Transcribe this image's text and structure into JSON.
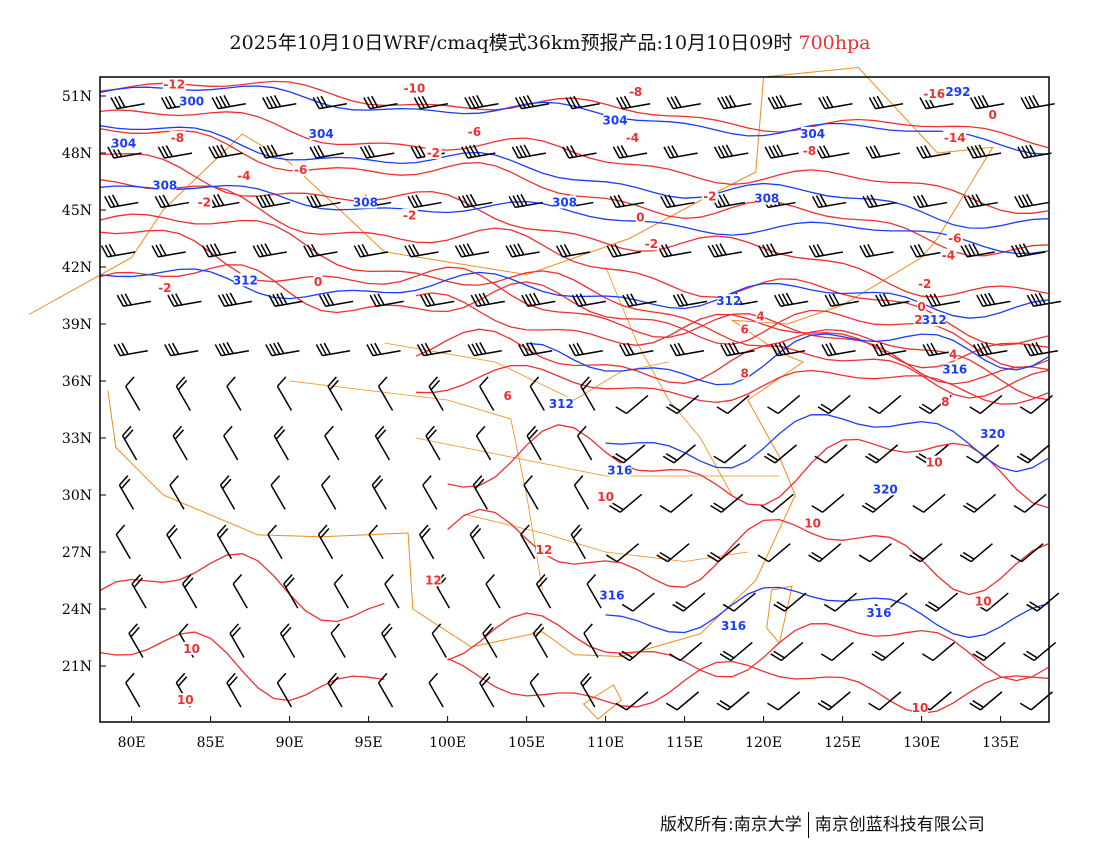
{
  "title": {
    "main": "2025年10月10日WRF/cmaq模式36km预报产品:10月10日09时",
    "level": "700hpa"
  },
  "footer": {
    "copyright": "版权所有:南京大学",
    "company": "南京创蓝科技有限公司"
  },
  "map": {
    "lon_range": [
      78,
      138
    ],
    "lat_range": [
      18,
      52
    ],
    "lon_ticks": [
      {
        "v": 80,
        "label": "80E"
      },
      {
        "v": 85,
        "label": "85E"
      },
      {
        "v": 90,
        "label": "90E"
      },
      {
        "v": 95,
        "label": "95E"
      },
      {
        "v": 100,
        "label": "100E"
      },
      {
        "v": 105,
        "label": "105E"
      },
      {
        "v": 110,
        "label": "110E"
      },
      {
        "v": 115,
        "label": "115E"
      },
      {
        "v": 120,
        "label": "120E"
      },
      {
        "v": 125,
        "label": "125E"
      },
      {
        "v": 130,
        "label": "130E"
      },
      {
        "v": 135,
        "label": "135E"
      }
    ],
    "lat_ticks": [
      {
        "v": 51,
        "label": "51N"
      },
      {
        "v": 48,
        "label": "48N"
      },
      {
        "v": 45,
        "label": "45N"
      },
      {
        "v": 42,
        "label": "42N"
      },
      {
        "v": 39,
        "label": "39N"
      },
      {
        "v": 36,
        "label": "36N"
      },
      {
        "v": 33,
        "label": "33N"
      },
      {
        "v": 30,
        "label": "30N"
      },
      {
        "v": 27,
        "label": "27N"
      },
      {
        "v": 24,
        "label": "24N"
      },
      {
        "v": 21,
        "label": "21N"
      }
    ],
    "colors": {
      "temperature": "#f03030",
      "height": "#1a3cff",
      "border": "#f08c1e",
      "wind": "#000000"
    },
    "temperature_labels": [
      {
        "t": "-12",
        "lon": 82.7,
        "lat": 51.6
      },
      {
        "t": "-10",
        "lon": 97.9,
        "lat": 51.4
      },
      {
        "t": "-8",
        "lon": 111.9,
        "lat": 51.2
      },
      {
        "t": "-6",
        "lon": 101.7,
        "lat": 49.1
      },
      {
        "t": "-4",
        "lon": 111.7,
        "lat": 48.8
      },
      {
        "t": "-8",
        "lon": 82.9,
        "lat": 48.8
      },
      {
        "t": "-2",
        "lon": 99.1,
        "lat": 48.0
      },
      {
        "t": "-4",
        "lon": 87.1,
        "lat": 46.8
      },
      {
        "t": "-6",
        "lon": 90.7,
        "lat": 47.1
      },
      {
        "t": "-2",
        "lon": 84.6,
        "lat": 45.4
      },
      {
        "t": "-2",
        "lon": 97.6,
        "lat": 44.7
      },
      {
        "t": "0",
        "lon": 112.2,
        "lat": 44.6
      },
      {
        "t": "-2",
        "lon": 116.6,
        "lat": 45.7
      },
      {
        "t": "-2",
        "lon": 112.9,
        "lat": 43.2
      },
      {
        "t": "-8",
        "lon": 122.9,
        "lat": 48.1
      },
      {
        "t": "-16",
        "lon": 130.8,
        "lat": 51.1
      },
      {
        "t": "-14",
        "lon": 132.1,
        "lat": 48.8
      },
      {
        "t": "-6",
        "lon": 132.1,
        "lat": 43.5
      },
      {
        "t": "-4",
        "lon": 131.7,
        "lat": 42.6
      },
      {
        "t": "-2",
        "lon": 130.2,
        "lat": 41.1
      },
      {
        "t": "0",
        "lon": 130.0,
        "lat": 39.9
      },
      {
        "t": "2",
        "lon": 129.8,
        "lat": 39.2
      },
      {
        "t": "4",
        "lon": 132.0,
        "lat": 37.4
      },
      {
        "t": "6",
        "lon": 118.8,
        "lat": 38.7
      },
      {
        "t": "4",
        "lon": 119.8,
        "lat": 39.4
      },
      {
        "t": "8",
        "lon": 118.8,
        "lat": 36.4
      },
      {
        "t": "8",
        "lon": 131.5,
        "lat": 34.9
      },
      {
        "t": "6",
        "lon": 103.8,
        "lat": 35.2
      },
      {
        "t": "-2",
        "lon": 82.1,
        "lat": 40.9
      },
      {
        "t": "0",
        "lon": 91.8,
        "lat": 41.2
      },
      {
        "t": "10",
        "lon": 130.8,
        "lat": 31.7
      },
      {
        "t": "10",
        "lon": 123.1,
        "lat": 28.5
      },
      {
        "t": "10",
        "lon": 110.0,
        "lat": 29.9
      },
      {
        "t": "12",
        "lon": 106.1,
        "lat": 27.1
      },
      {
        "t": "12",
        "lon": 99.1,
        "lat": 25.5
      },
      {
        "t": "10",
        "lon": 83.8,
        "lat": 21.9
      },
      {
        "t": "10",
        "lon": 83.4,
        "lat": 19.2
      },
      {
        "t": "10",
        "lon": 129.9,
        "lat": 18.8
      },
      {
        "t": "10",
        "lon": 133.9,
        "lat": 24.4
      },
      {
        "t": "0",
        "lon": 134.5,
        "lat": 50.0
      }
    ],
    "height_labels": [
      {
        "t": "300",
        "lon": 83.8,
        "lat": 50.7
      },
      {
        "t": "304",
        "lon": 79.5,
        "lat": 48.5
      },
      {
        "t": "304",
        "lon": 92.0,
        "lat": 49.0
      },
      {
        "t": "304",
        "lon": 110.6,
        "lat": 49.7
      },
      {
        "t": "304",
        "lon": 123.1,
        "lat": 49.0
      },
      {
        "t": "292",
        "lon": 132.3,
        "lat": 51.2
      },
      {
        "t": "308",
        "lon": 82.1,
        "lat": 46.3
      },
      {
        "t": "308",
        "lon": 94.8,
        "lat": 45.4
      },
      {
        "t": "308",
        "lon": 107.4,
        "lat": 45.4
      },
      {
        "t": "308",
        "lon": 120.2,
        "lat": 45.6
      },
      {
        "t": "312",
        "lon": 87.2,
        "lat": 41.3
      },
      {
        "t": "312",
        "lon": 117.8,
        "lat": 40.2
      },
      {
        "t": "312",
        "lon": 130.8,
        "lat": 39.2
      },
      {
        "t": "312",
        "lon": 107.2,
        "lat": 34.8
      },
      {
        "t": "316",
        "lon": 132.1,
        "lat": 36.6
      },
      {
        "t": "316",
        "lon": 110.9,
        "lat": 31.3
      },
      {
        "t": "316",
        "lon": 110.4,
        "lat": 24.7
      },
      {
        "t": "316",
        "lon": 118.1,
        "lat": 23.1
      },
      {
        "t": "316",
        "lon": 127.3,
        "lat": 23.8
      },
      {
        "t": "320",
        "lon": 134.5,
        "lat": 33.2
      },
      {
        "t": "320",
        "lon": 127.7,
        "lat": 30.3
      }
    ]
  }
}
